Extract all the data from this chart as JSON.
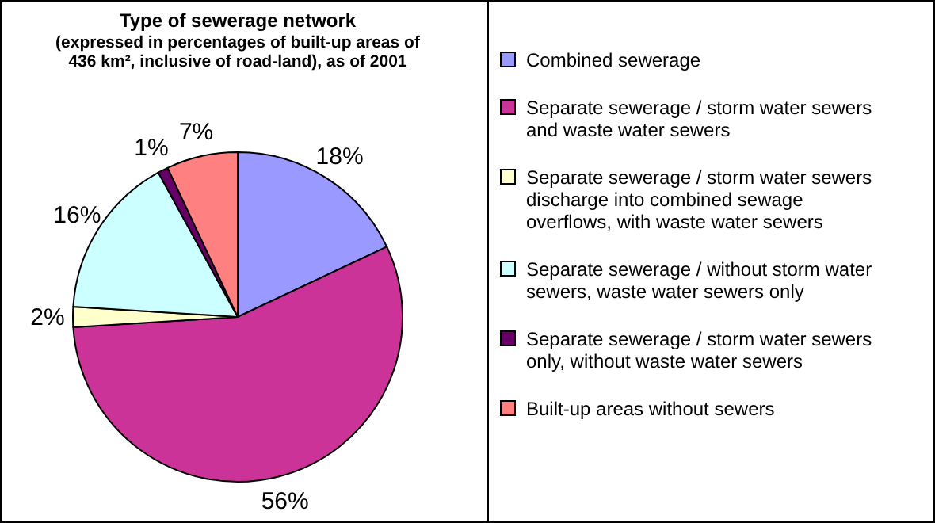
{
  "chart_data": {
    "type": "pie",
    "title": "Type of sewerage network",
    "subtitle": "(expressed in percentages of built-up areas of 436 km², inclusive of road-land), as of 2001",
    "categories": [
      "Combined sewerage",
      "Separate sewerage / storm water sewers and waste water sewers",
      "Separate sewerage / storm water sewers discharge into combined sewage overflows, with waste water sewers",
      "Separate sewerage / without storm water sewers, waste water sewers only",
      "Separate sewerage / storm water sewers only, without waste water sewers",
      "Built-up areas without sewers"
    ],
    "values": [
      18,
      56,
      2,
      16,
      1,
      7
    ],
    "colors": [
      "#9999ff",
      "#cc3399",
      "#ffffcc",
      "#ccffff",
      "#660066",
      "#ff8080"
    ],
    "value_labels": [
      "18%",
      "56%",
      "2%",
      "16%",
      "1%",
      "7%"
    ],
    "legend": "right"
  }
}
